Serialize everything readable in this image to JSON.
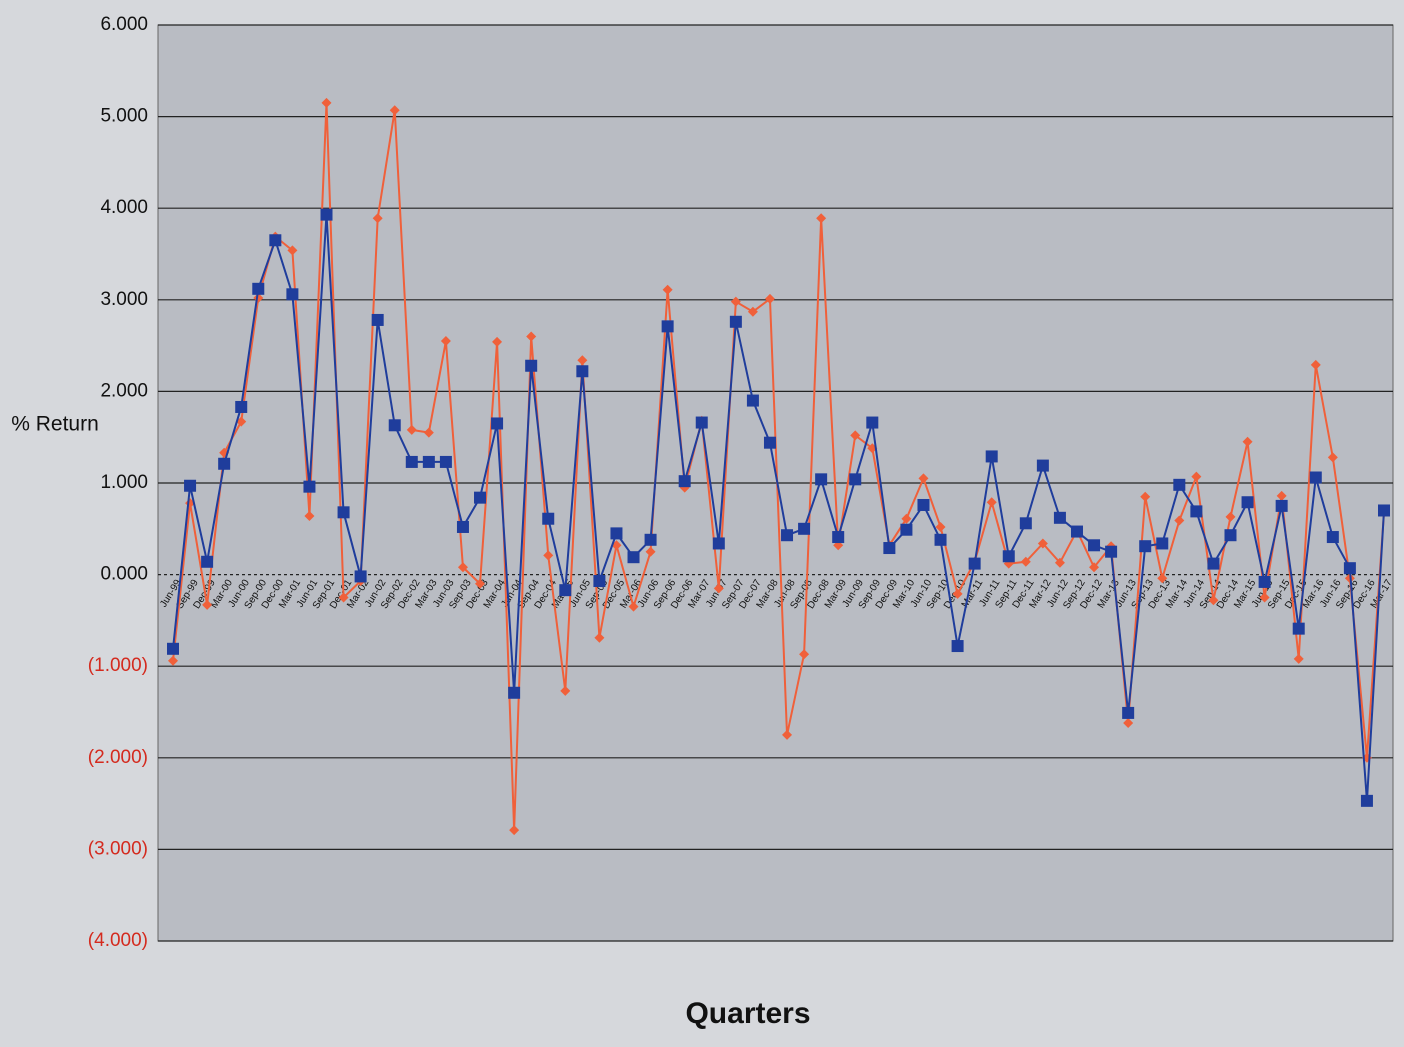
{
  "chart_data": {
    "type": "line",
    "y_label": "% Return",
    "x_label": "Quarters",
    "categories": [
      "Jun-99",
      "Sep-99",
      "Dec-99",
      "Mar-00",
      "Jun-00",
      "Sep-00",
      "Dec-00",
      "Mar-01",
      "Jun-01",
      "Sep-01",
      "Dec-01",
      "Mar-02",
      "Jun-02",
      "Sep-02",
      "Dec-02",
      "Mar-03",
      "Jun-03",
      "Sep-03",
      "Dec-03",
      "Mar-04",
      "Jun-04",
      "Sep-04",
      "Dec-04",
      "Mar-05",
      "Jun-05",
      "Sep-05",
      "Dec-05",
      "Mar-06",
      "Jun-06",
      "Sep-06",
      "Dec-06",
      "Mar-07",
      "Jun-07",
      "Sep-07",
      "Dec-07",
      "Mar-08",
      "Jun-08",
      "Sep-08",
      "Dec-08",
      "Mar-09",
      "Jun-09",
      "Sep-09",
      "Dec-09",
      "Mar-10",
      "Jun-10",
      "Sep-10",
      "Dec-10",
      "Mar-11",
      "Jun-11",
      "Sep-11",
      "Dec-11",
      "Mar-12",
      "Jun-12",
      "Sep-12",
      "Dec-12",
      "Mar-13",
      "Jun-13",
      "Sep-13",
      "Dec-13",
      "Mar-14",
      "Jun-14",
      "Sep-14",
      "Dec-14",
      "Mar-15",
      "Jun-15",
      "Sep-15",
      "Dec-15",
      "Mar-16",
      "Jun-16",
      "Sep-16",
      "Dec-16",
      "Mar-17"
    ],
    "series": [
      {
        "color": "#f0603a",
        "marker": "diamond",
        "values": [
          -0.94,
          0.78,
          -0.33,
          1.33,
          1.67,
          3.02,
          3.69,
          3.54,
          0.64,
          5.15,
          -0.25,
          -0.07,
          3.89,
          5.07,
          1.58,
          1.55,
          2.55,
          0.08,
          -0.1,
          2.54,
          -2.79,
          2.6,
          0.21,
          -1.27,
          2.34,
          -0.69,
          0.32,
          -0.35,
          0.25,
          3.11,
          0.95,
          1.68,
          -0.15,
          2.98,
          2.87,
          3.01,
          -1.75,
          -0.87,
          3.89,
          0.32,
          1.52,
          1.38,
          0.32,
          0.61,
          1.05,
          0.52,
          -0.21,
          0.14,
          0.79,
          0.12,
          0.14,
          0.34,
          0.13,
          0.48,
          0.08,
          0.31,
          -1.62,
          0.85,
          -0.04,
          0.59,
          1.07,
          -0.28,
          0.63,
          1.45,
          -0.25,
          0.86,
          -0.92,
          2.29,
          1.28,
          -0.04,
          -2.0,
          0.68
        ]
      },
      {
        "color": "#1f3d9c",
        "marker": "square",
        "values": [
          -0.81,
          0.97,
          0.14,
          1.21,
          1.83,
          3.12,
          3.65,
          3.06,
          0.96,
          3.93,
          0.68,
          -0.02,
          2.78,
          1.63,
          1.23,
          1.23,
          1.23,
          0.52,
          0.84,
          1.65,
          -1.29,
          2.28,
          0.61,
          -0.17,
          2.22,
          -0.07,
          0.45,
          0.19,
          0.38,
          2.71,
          1.02,
          1.66,
          0.34,
          2.76,
          1.9,
          1.44,
          0.43,
          0.5,
          1.04,
          0.41,
          1.04,
          1.66,
          0.29,
          0.49,
          0.76,
          0.38,
          -0.78,
          0.12,
          1.29,
          0.2,
          0.56,
          1.19,
          0.62,
          0.47,
          0.32,
          0.25,
          -1.51,
          0.31,
          0.34,
          0.98,
          0.69,
          0.12,
          0.43,
          0.79,
          -0.08,
          0.75,
          -0.59,
          1.06,
          0.41,
          0.07,
          -2.47,
          0.7
        ]
      }
    ],
    "ylim": [
      -4,
      6
    ],
    "yticks": [
      {
        "value": -4,
        "label": "(4.000)"
      },
      {
        "value": -3,
        "label": "(3.000)"
      },
      {
        "value": -2,
        "label": "(2.000)"
      },
      {
        "value": -1,
        "label": "(1.000)"
      },
      {
        "value": 0,
        "label": "0.000"
      },
      {
        "value": 1,
        "label": "1.000"
      },
      {
        "value": 2,
        "label": "2.000"
      },
      {
        "value": 3,
        "label": "3.000"
      },
      {
        "value": 4,
        "label": "4.000"
      },
      {
        "value": 5,
        "label": "5.000"
      },
      {
        "value": 6,
        "label": "6.000"
      }
    ],
    "grid": true
  }
}
